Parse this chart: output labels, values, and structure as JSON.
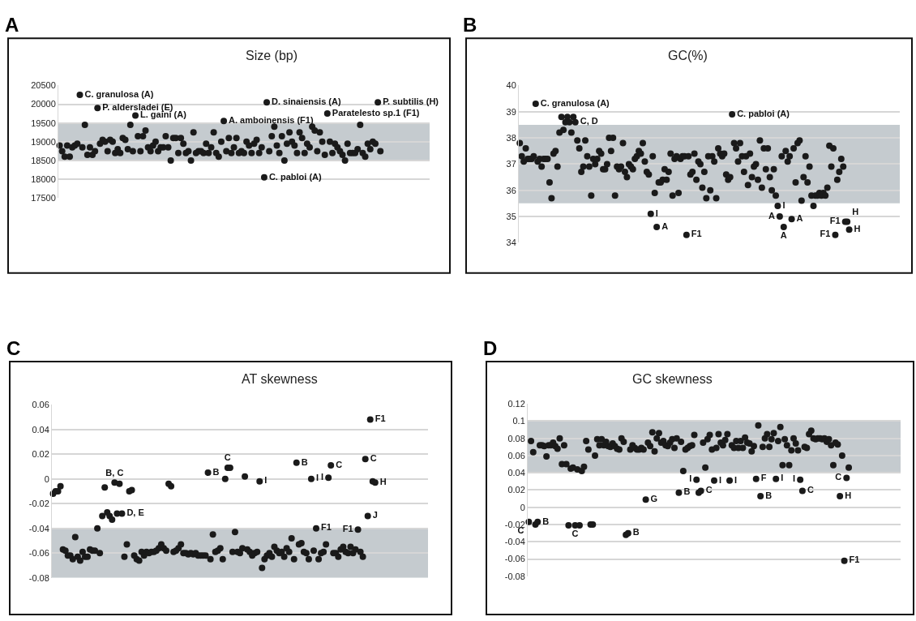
{
  "chart_data": [
    {
      "type": "scatter",
      "title": "Size (bp)",
      "annotations": [
        "A"
      ],
      "color": "#1a1a1a",
      "marker": "circle",
      "grid": "y",
      "tick_labels": "y",
      "ylim": [
        17500,
        20500
      ],
      "yticks": [
        17500,
        18000,
        18500,
        19000,
        19500,
        20000,
        20500
      ],
      "bands": [
        {
          "axis": "y",
          "from": 18500,
          "to": 19500,
          "color": "#c5cbcf"
        }
      ],
      "categories": [
        null,
        null,
        null,
        null,
        null,
        null,
        null,
        null,
        null,
        null,
        null,
        null,
        null,
        null,
        null,
        null,
        null,
        null,
        null,
        null,
        null,
        null,
        null,
        null,
        null,
        null,
        null,
        null,
        null,
        null,
        null,
        null,
        null,
        null,
        null,
        null,
        null,
        null,
        null,
        null,
        null,
        null,
        null,
        null,
        null,
        null,
        null,
        null,
        null,
        null,
        null,
        null,
        null,
        null,
        null,
        null,
        null,
        null,
        null,
        null,
        null,
        null,
        null,
        null,
        null,
        null,
        null,
        null,
        null,
        null,
        null,
        null,
        null,
        null,
        null,
        null,
        null,
        null,
        null,
        null,
        null,
        null,
        null,
        null,
        null,
        null,
        null,
        null,
        null,
        null,
        null,
        null,
        null,
        null,
        null,
        null,
        null,
        null,
        null,
        null,
        null,
        null,
        null,
        null,
        null,
        null,
        null,
        null,
        null,
        null,
        null,
        null,
        null,
        null,
        null,
        null,
        null,
        null,
        null,
        null,
        null,
        null,
        null,
        null,
        null,
        null,
        null,
        null,
        null,
        null,
        null,
        null,
        null,
        null,
        null,
        null,
        null,
        null,
        null,
        null,
        null,
        null,
        null,
        null,
        null,
        null,
        null
      ],
      "values": [
        18900,
        18750,
        18600,
        18900,
        18600,
        18850,
        18900,
        18950,
        20250,
        18850,
        19450,
        18650,
        18850,
        18650,
        18750,
        19900,
        18950,
        19050,
        19000,
        18750,
        19050,
        19000,
        18700,
        18800,
        18700,
        19100,
        19050,
        18800,
        19450,
        18750,
        19700,
        19150,
        18750,
        19150,
        19300,
        18850,
        18750,
        18900,
        19000,
        18750,
        18850,
        18850,
        19150,
        18850,
        18500,
        19100,
        19100,
        18700,
        19100,
        18950,
        18700,
        18750,
        18500,
        19250,
        18700,
        18750,
        18750,
        18700,
        18950,
        18700,
        18850,
        19250,
        18700,
        18600,
        19000,
        19550,
        18750,
        19100,
        18700,
        18850,
        19100,
        18700,
        18750,
        18700,
        19000,
        18900,
        18700,
        18950,
        19050,
        18700,
        18850,
        18050,
        20050,
        18750,
        19150,
        19400,
        18900,
        18700,
        19150,
        18500,
        18950,
        19250,
        19000,
        18900,
        18700,
        19250,
        19100,
        18700,
        18950,
        18850,
        19400,
        19300,
        18750,
        19250,
        19000,
        18650,
        19750,
        19000,
        18700,
        18950,
        18850,
        18750,
        18650,
        18500,
        18950,
        18700,
        18700,
        18700,
        18800,
        19450,
        18700,
        18600,
        18950,
        18800,
        19000,
        18950,
        20050,
        18750,
        null,
        null,
        null,
        null,
        null,
        null,
        null,
        null,
        null,
        null,
        null,
        null,
        null,
        null,
        null,
        null,
        null,
        null,
        null
      ],
      "value_labels": [
        null,
        null,
        null,
        null,
        null,
        null,
        null,
        null,
        "C. granulosa (A)",
        null,
        null,
        null,
        null,
        null,
        null,
        "P. aldersladei (E)",
        null,
        null,
        null,
        null,
        null,
        null,
        null,
        null,
        null,
        null,
        null,
        null,
        null,
        null,
        "L. gaini (A)",
        null,
        null,
        null,
        null,
        null,
        null,
        null,
        null,
        null,
        null,
        null,
        null,
        null,
        null,
        null,
        null,
        null,
        null,
        null,
        null,
        null,
        null,
        null,
        null,
        null,
        null,
        null,
        null,
        null,
        null,
        null,
        null,
        null,
        null,
        "A. amboinensis (F1)",
        null,
        null,
        null,
        null,
        null,
        null,
        null,
        null,
        null,
        null,
        null,
        null,
        null,
        null,
        null,
        "C. pabloi (A)",
        "D. sinaiensis (A)",
        null,
        null,
        null,
        null,
        null,
        null,
        null,
        null,
        null,
        null,
        null,
        null,
        null,
        null,
        null,
        null,
        null,
        null,
        null,
        null,
        null,
        null,
        null,
        "Paratelesto sp.1 (F1)",
        null,
        null,
        null,
        null,
        null,
        null,
        null,
        null,
        null,
        null,
        null,
        null,
        null,
        null,
        null,
        null,
        null,
        null,
        null,
        "P. subtilis (H)",
        null,
        null,
        null,
        null,
        null,
        null,
        null,
        null,
        null,
        null,
        null,
        null,
        null,
        null,
        null,
        null,
        null,
        null,
        null,
        null
      ]
    },
    {
      "type": "scatter",
      "title": "GC(%)",
      "annotations": [
        "B"
      ],
      "color": "#1a1a1a",
      "marker": "circle",
      "grid": "y",
      "tick_labels": "y",
      "ylim": [
        34,
        40
      ],
      "yticks": [
        34,
        35,
        36,
        37,
        38,
        39,
        40
      ],
      "bands": [
        {
          "axis": "y",
          "from": 35.5,
          "to": 38.5,
          "color": "#c5cbcf"
        }
      ],
      "categories": [
        null,
        null,
        null,
        null,
        null,
        null,
        null,
        null,
        null,
        null,
        null,
        null,
        null,
        null,
        null,
        null,
        null,
        null,
        null,
        null,
        null,
        null,
        null,
        null,
        null,
        null,
        null,
        null,
        null,
        null,
        null,
        null,
        null,
        null,
        null,
        null,
        null,
        null,
        null,
        null,
        null,
        null,
        null,
        null,
        null,
        null,
        null,
        null,
        null,
        null,
        null,
        null,
        null,
        null,
        null,
        null,
        null,
        null,
        null,
        null,
        null,
        null,
        null,
        null,
        null,
        null,
        null,
        null,
        null,
        null,
        null,
        null,
        null,
        null,
        null,
        null,
        null,
        null,
        null,
        null,
        null,
        null,
        null,
        null,
        null,
        null,
        null,
        null,
        null,
        null,
        null,
        null,
        null,
        null,
        null,
        null,
        null,
        null,
        null,
        null,
        null,
        null,
        null,
        null,
        null,
        null,
        null,
        null,
        null,
        null,
        null,
        null,
        null,
        null,
        null,
        null,
        null,
        null,
        null,
        null,
        null,
        null,
        null,
        null,
        null,
        null,
        null,
        null,
        null,
        null,
        null,
        null,
        null,
        null,
        null,
        null,
        null,
        null,
        null,
        null,
        null,
        null,
        null,
        null,
        null,
        null,
        null,
        null,
        null,
        null,
        null,
        null,
        null,
        null,
        null,
        null,
        null,
        null,
        null,
        null,
        null,
        null,
        null,
        null,
        null,
        null,
        null,
        null,
        null,
        null,
        null,
        null,
        null,
        null,
        null,
        null,
        null,
        null,
        null,
        null,
        null,
        null,
        null,
        null,
        null,
        null,
        null,
        null,
        null,
        null,
        null,
        null
      ],
      "values": [
        37.8,
        37.3,
        37.1,
        37.6,
        37.2,
        37.2,
        37.2,
        37.3,
        39.3,
        37.1,
        37.2,
        36.9,
        37.2,
        37.2,
        37.2,
        36.3,
        35.7,
        37.4,
        37.5,
        36.9,
        38.2,
        38.8,
        38.3,
        38.6,
        38.8,
        38.6,
        38.2,
        38.8,
        38.6,
        37.9,
        37.6,
        36.7,
        36.9,
        37.9,
        37.3,
        36.9,
        35.8,
        37.2,
        37.0,
        37.2,
        37.5,
        37.4,
        36.8,
        36.8,
        37.0,
        38.0,
        37.5,
        38.0,
        35.8,
        36.9,
        36.8,
        36.9,
        37.8,
        36.7,
        36.5,
        37.0,
        36.9,
        36.8,
        37.2,
        37.3,
        37.5,
        37.4,
        37.8,
        37.1,
        36.7,
        36.6,
        35.1,
        37.3,
        35.9,
        34.6,
        36.3,
        36.3,
        36.4,
        36.8,
        36.4,
        36.7,
        37.4,
        35.8,
        37.2,
        37.3,
        35.9,
        37.2,
        37.3,
        37.3,
        34.3,
        37.3,
        36.6,
        36.7,
        37.4,
        36.4,
        37.1,
        37.0,
        36.1,
        36.7,
        35.7,
        37.3,
        36.0,
        37.3,
        37.1,
        35.7,
        37.6,
        37.4,
        37.3,
        37.4,
        36.6,
        36.4,
        36.5,
        38.9,
        37.8,
        37.6,
        37.1,
        37.8,
        37.3,
        36.7,
        37.3,
        36.2,
        37.4,
        36.5,
        36.9,
        37.0,
        36.4,
        37.9,
        36.1,
        37.6,
        36.8,
        37.6,
        36.5,
        36.0,
        36.8,
        35.8,
        35.4,
        35.0,
        37.3,
        34.6,
        37.5,
        37.1,
        37.3,
        34.9,
        37.6,
        36.3,
        37.8,
        37.9,
        35.6,
        36.5,
        37.3,
        36.3,
        36.9,
        35.8,
        35.4,
        35.8,
        35.8,
        35.9,
        35.8,
        35.9,
        35.8,
        36.1,
        37.7,
        36.9,
        37.6,
        34.3,
        36.4,
        36.7,
        37.2,
        36.9,
        34.8,
        34.8,
        34.5,
        null,
        null,
        null,
        null,
        null,
        null,
        null,
        null,
        null,
        null,
        null,
        null,
        null,
        null,
        null,
        null,
        null,
        null,
        null,
        null,
        null,
        null,
        null,
        null,
        null
      ],
      "value_labels": [
        null,
        null,
        null,
        null,
        null,
        null,
        null,
        null,
        "C. granulosa (A)",
        null,
        null,
        null,
        null,
        null,
        null,
        null,
        null,
        null,
        null,
        null,
        null,
        null,
        null,
        null,
        null,
        null,
        null,
        null,
        "C, D",
        null,
        null,
        null,
        null,
        null,
        null,
        null,
        null,
        null,
        null,
        null,
        null,
        null,
        null,
        null,
        null,
        null,
        null,
        null,
        null,
        null,
        null,
        null,
        null,
        null,
        null,
        null,
        null,
        null,
        null,
        null,
        null,
        null,
        null,
        null,
        null,
        null,
        "I",
        null,
        null,
        "A",
        null,
        null,
        null,
        null,
        null,
        null,
        null,
        null,
        null,
        null,
        null,
        null,
        null,
        null,
        "F1",
        null,
        null,
        null,
        null,
        null,
        null,
        null,
        null,
        null,
        null,
        null,
        null,
        null,
        null,
        null,
        null,
        null,
        null,
        null,
        null,
        null,
        null,
        "C. pabloi (A)",
        null,
        null,
        null,
        null,
        null,
        null,
        null,
        null,
        null,
        null,
        null,
        null,
        null,
        null,
        null,
        null,
        null,
        null,
        null,
        null,
        null,
        null,
        "I",
        "A",
        null,
        "A",
        null,
        null,
        null,
        "A",
        null,
        null,
        null,
        null,
        null,
        null,
        null,
        null,
        null,
        null,
        null,
        null,
        null,
        null,
        null,
        null,
        null,
        null,
        null,
        null,
        null,
        "F1",
        null,
        null,
        null,
        null,
        "F1",
        "H",
        "H",
        null,
        null,
        null,
        null,
        null,
        null,
        null,
        null,
        null,
        null,
        null,
        null,
        null,
        null,
        null,
        null,
        null,
        null,
        null,
        null,
        null,
        null,
        null,
        null,
        null
      ]
    },
    {
      "type": "scatter",
      "title": "AT skewness",
      "annotations": [
        "C"
      ],
      "color": "#1a1a1a",
      "marker": "circle",
      "grid": "y",
      "tick_labels": "y",
      "ylim": [
        -0.08,
        0.06
      ],
      "yticks": [
        -0.08,
        -0.06,
        -0.04,
        -0.02,
        0,
        0.02,
        0.04,
        0.06
      ],
      "bands": [
        {
          "axis": "y",
          "from": -0.08,
          "to": -0.04,
          "color": "#c5cbcf"
        }
      ],
      "categories": [
        null,
        null,
        null,
        null,
        null,
        null,
        null,
        null,
        null,
        null,
        null,
        null,
        null,
        null,
        null,
        null,
        null,
        null,
        null,
        null,
        null,
        null,
        null,
        null,
        null,
        null,
        null,
        null,
        null,
        null,
        null,
        null,
        null,
        null,
        null,
        null,
        null,
        null,
        null,
        null,
        null,
        null,
        null,
        null,
        null,
        null,
        null,
        null,
        null,
        null,
        null,
        null,
        null,
        null,
        null,
        null,
        null,
        null,
        null,
        null,
        null,
        null,
        null,
        null,
        null,
        null,
        null,
        null,
        null,
        null,
        null,
        null,
        null,
        null,
        null,
        null,
        null,
        null,
        null,
        null,
        null,
        null,
        null,
        null,
        null,
        null,
        null,
        null,
        null,
        null,
        null,
        null,
        null,
        null,
        null,
        null,
        null,
        null,
        null,
        null,
        null,
        null,
        null,
        null,
        null,
        null,
        null,
        null,
        null,
        null,
        null,
        null,
        null,
        null,
        null,
        null,
        null,
        null,
        null,
        null,
        null,
        null,
        null,
        null,
        null,
        null,
        null,
        null,
        null,
        null,
        null,
        null,
        null,
        null,
        null,
        null,
        null,
        null,
        null,
        null,
        null,
        null,
        null,
        null,
        null,
        null,
        null,
        null,
        null,
        null,
        null,
        null,
        null
      ],
      "values": [
        -0.012,
        -0.01,
        -0.01,
        -0.006,
        -0.057,
        -0.058,
        -0.062,
        -0.062,
        -0.065,
        -0.047,
        -0.063,
        -0.066,
        -0.059,
        -0.063,
        -0.063,
        -0.057,
        -0.058,
        -0.058,
        -0.04,
        -0.06,
        -0.03,
        -0.007,
        -0.027,
        -0.03,
        -0.033,
        -0.003,
        -0.028,
        -0.004,
        -0.028,
        -0.063,
        -0.053,
        -0.01,
        -0.009,
        -0.062,
        -0.065,
        -0.066,
        -0.059,
        -0.062,
        -0.059,
        -0.06,
        -0.059,
        -0.059,
        -0.058,
        -0.056,
        -0.053,
        -0.056,
        -0.058,
        -0.004,
        -0.006,
        -0.059,
        -0.058,
        -0.056,
        -0.053,
        -0.06,
        -0.06,
        -0.061,
        -0.06,
        -0.061,
        -0.06,
        -0.062,
        -0.062,
        -0.062,
        -0.062,
        0.005,
        -0.065,
        -0.045,
        -0.059,
        -0.058,
        -0.056,
        -0.065,
        0.0,
        0.009,
        0.009,
        -0.059,
        -0.043,
        -0.059,
        -0.06,
        -0.056,
        0.002,
        -0.057,
        -0.059,
        -0.062,
        -0.06,
        -0.059,
        -0.002,
        -0.072,
        -0.065,
        -0.062,
        -0.06,
        -0.063,
        -0.055,
        -0.058,
        -0.06,
        -0.059,
        -0.063,
        -0.056,
        -0.059,
        -0.048,
        -0.065,
        0.013,
        -0.053,
        -0.052,
        -0.059,
        -0.06,
        -0.065,
        0.0,
        -0.058,
        -0.04,
        -0.065,
        -0.06,
        -0.059,
        -0.053,
        0.001,
        0.011,
        -0.06,
        -0.06,
        -0.063,
        -0.057,
        -0.055,
        -0.059,
        -0.06,
        -0.055,
        -0.06,
        -0.057,
        -0.041,
        -0.059,
        -0.063,
        0.016,
        -0.03,
        0.048,
        -0.002,
        -0.003,
        null,
        null,
        null,
        null,
        null,
        null,
        null,
        null,
        null,
        null,
        null,
        null,
        null,
        null,
        null,
        null,
        null,
        null,
        null,
        null,
        null
      ],
      "value_labels": [
        null,
        null,
        null,
        null,
        null,
        null,
        null,
        null,
        null,
        null,
        null,
        null,
        null,
        null,
        null,
        null,
        null,
        null,
        null,
        null,
        null,
        null,
        null,
        null,
        null,
        "B, C",
        null,
        null,
        "D, E",
        null,
        null,
        null,
        null,
        null,
        null,
        null,
        null,
        null,
        null,
        null,
        null,
        null,
        null,
        null,
        null,
        null,
        null,
        null,
        null,
        null,
        null,
        null,
        null,
        null,
        null,
        null,
        null,
        null,
        null,
        null,
        null,
        null,
        null,
        "B",
        null,
        null,
        null,
        null,
        null,
        null,
        null,
        "C",
        null,
        null,
        null,
        null,
        null,
        null,
        null,
        null,
        null,
        null,
        null,
        null,
        "I",
        null,
        null,
        null,
        null,
        null,
        null,
        null,
        null,
        null,
        null,
        null,
        null,
        null,
        null,
        "B",
        null,
        null,
        null,
        null,
        null,
        "I",
        null,
        "F1",
        null,
        null,
        null,
        null,
        "I",
        "C",
        null,
        null,
        null,
        null,
        null,
        null,
        null,
        null,
        null,
        null,
        "F1",
        null,
        null,
        "C",
        "J",
        "F1",
        null,
        "H",
        null,
        null,
        null,
        null,
        null,
        null,
        null,
        null,
        null,
        null,
        null,
        null,
        null,
        null,
        null,
        null,
        null,
        null,
        null,
        null,
        null
      ]
    },
    {
      "type": "scatter",
      "title": "GC skewness",
      "annotations": [
        "D"
      ],
      "color": "#1a1a1a",
      "marker": "circle",
      "grid": "y",
      "tick_labels": "y",
      "ylim": [
        -0.08,
        0.12
      ],
      "yticks": [
        -0.08,
        -0.06,
        -0.04,
        -0.02,
        0,
        0.02,
        0.04,
        0.06,
        0.08,
        0.1,
        0.12
      ],
      "bands": [
        {
          "axis": "y",
          "from": 0.04,
          "to": 0.1,
          "color": "#c5cbcf"
        }
      ],
      "categories": [
        null,
        null,
        null,
        null,
        null,
        null,
        null,
        null,
        null,
        null,
        null,
        null,
        null,
        null,
        null,
        null,
        null,
        null,
        null,
        null,
        null,
        null,
        null,
        null,
        null,
        null,
        null,
        null,
        null,
        null,
        null,
        null,
        null,
        null,
        null,
        null,
        null,
        null,
        null,
        null,
        null,
        null,
        null,
        null,
        null,
        null,
        null,
        null,
        null,
        null,
        null,
        null,
        null,
        null,
        null,
        null,
        null,
        null,
        null,
        null,
        null,
        null,
        null,
        null,
        null,
        null,
        null,
        null,
        null,
        null,
        null,
        null,
        null,
        null,
        null,
        null,
        null,
        null,
        null,
        null,
        null,
        null,
        null,
        null,
        null,
        null,
        null,
        null,
        null,
        null,
        null,
        null,
        null,
        null,
        null,
        null,
        null,
        null,
        null,
        null,
        null,
        null,
        null,
        null,
        null,
        null,
        null,
        null,
        null,
        null,
        null,
        null,
        null,
        null,
        null,
        null,
        null,
        null,
        null,
        null,
        null,
        null,
        null,
        null,
        null,
        null,
        null,
        null,
        null,
        null,
        null,
        null,
        null,
        null,
        null,
        null,
        null,
        null,
        null,
        null,
        null,
        null,
        null,
        null,
        null,
        null,
        null,
        null,
        null,
        null,
        null,
        null,
        null,
        null,
        null,
        null,
        null,
        null,
        null,
        null,
        null,
        null,
        null,
        null,
        null,
        null,
        null,
        null,
        null
      ],
      "values": [
        -0.017,
        0.077,
        0.064,
        -0.02,
        -0.017,
        0.072,
        0.072,
        0.071,
        0.059,
        0.072,
        0.072,
        0.075,
        0.071,
        0.068,
        0.08,
        0.05,
        0.072,
        0.05,
        -0.021,
        0.045,
        0.046,
        -0.021,
        0.044,
        -0.021,
        0.042,
        0.047,
        0.077,
        0.067,
        -0.02,
        -0.02,
        0.06,
        0.079,
        0.072,
        0.079,
        0.072,
        0.076,
        0.071,
        0.07,
        0.074,
        0.071,
        0.068,
        0.067,
        0.08,
        0.076,
        -0.032,
        -0.03,
        0.067,
        0.072,
        0.069,
        0.067,
        0.067,
        0.069,
        0.067,
        0.009,
        0.075,
        0.071,
        0.087,
        0.065,
        0.08,
        0.086,
        0.075,
        0.077,
        0.072,
        0.071,
        0.075,
        0.079,
        0.069,
        0.08,
        0.017,
        0.076,
        0.042,
        0.067,
        0.069,
        0.071,
        0.072,
        0.084,
        0.032,
        0.017,
        0.019,
        0.075,
        0.046,
        0.079,
        0.084,
        0.067,
        0.031,
        0.069,
        0.085,
        0.075,
        0.072,
        0.078,
        0.085,
        0.031,
        0.072,
        0.069,
        0.077,
        0.069,
        0.077,
        0.069,
        0.081,
        0.075,
        0.074,
        0.065,
        0.071,
        0.033,
        0.095,
        0.013,
        0.07,
        0.08,
        0.085,
        0.07,
        0.079,
        0.086,
        0.033,
        0.077,
        0.093,
        0.049,
        0.079,
        0.072,
        0.049,
        0.066,
        0.08,
        0.074,
        0.066,
        0.032,
        0.019,
        0.07,
        0.069,
        0.085,
        0.089,
        0.08,
        0.079,
        0.08,
        0.08,
        0.079,
        0.08,
        0.076,
        0.079,
        0.072,
        0.049,
        0.075,
        0.073,
        0.013,
        0.06,
        -0.062,
        0.034,
        0.046,
        null,
        null,
        null,
        null,
        null,
        null,
        null,
        null,
        null,
        null,
        null,
        null,
        null,
        null,
        null,
        null,
        null,
        null,
        null,
        null,
        null,
        null,
        null
      ],
      "value_labels": [
        "C",
        null,
        null,
        null,
        "B",
        null,
        null,
        null,
        null,
        null,
        null,
        null,
        null,
        null,
        null,
        null,
        null,
        null,
        null,
        null,
        null,
        "C",
        null,
        null,
        null,
        null,
        null,
        null,
        null,
        null,
        null,
        null,
        null,
        null,
        null,
        null,
        null,
        null,
        null,
        null,
        null,
        null,
        null,
        null,
        null,
        "B",
        null,
        null,
        null,
        null,
        null,
        null,
        null,
        "G",
        null,
        null,
        null,
        null,
        null,
        null,
        null,
        null,
        null,
        null,
        null,
        null,
        null,
        null,
        "B",
        null,
        null,
        null,
        null,
        null,
        null,
        null,
        "I",
        null,
        "C",
        null,
        null,
        null,
        null,
        null,
        "I",
        null,
        null,
        null,
        null,
        null,
        null,
        "I",
        null,
        null,
        null,
        null,
        null,
        null,
        null,
        null,
        null,
        null,
        null,
        "F",
        null,
        "B",
        null,
        null,
        null,
        null,
        null,
        null,
        "I",
        null,
        null,
        null,
        null,
        null,
        null,
        null,
        null,
        null,
        null,
        "I",
        "C",
        null,
        null,
        null,
        null,
        null,
        null,
        null,
        null,
        null,
        null,
        null,
        null,
        null,
        null,
        null,
        null,
        "H",
        null,
        "F1",
        "C",
        null,
        null,
        null,
        null,
        null,
        null,
        null,
        null,
        null,
        null,
        null,
        null,
        null,
        null,
        null,
        null,
        null,
        null,
        null,
        null,
        null,
        null,
        null,
        null
      ]
    }
  ]
}
